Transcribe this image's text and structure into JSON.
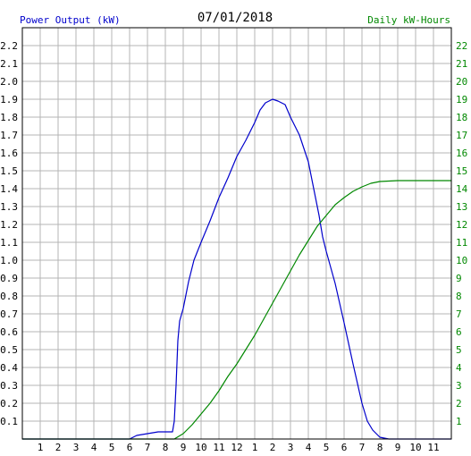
{
  "chart_data": {
    "type": "line",
    "title": "07/01/2018",
    "left_axis_label": "Power Output (kW)",
    "right_axis_label": "Daily kW-Hours",
    "x_ticks": [
      "1",
      "2",
      "3",
      "4",
      "5",
      "6",
      "7",
      "8",
      "9",
      "10",
      "11",
      "12",
      "1",
      "2",
      "3",
      "4",
      "5",
      "6",
      "7",
      "8",
      "9",
      "10",
      "11"
    ],
    "x_range_hours": [
      0,
      24
    ],
    "y_left": {
      "min": 0,
      "max": 2.3,
      "ticks": [
        "0.1",
        "0.2",
        "0.3",
        "0.4",
        "0.5",
        "0.6",
        "0.7",
        "0.8",
        "0.9",
        "1.0",
        "1.1",
        "1.2",
        "1.3",
        "1.4",
        "1.5",
        "1.6",
        "1.7",
        "1.8",
        "1.9",
        "2.0",
        "2.1",
        "2.2"
      ]
    },
    "y_right": {
      "min": 0,
      "max": 23,
      "ticks": [
        "1",
        "2",
        "3",
        "4",
        "5",
        "6",
        "7",
        "8",
        "9",
        "10",
        "11",
        "12",
        "13",
        "14",
        "15",
        "16",
        "17",
        "18",
        "19",
        "20",
        "21",
        "22"
      ]
    },
    "grid": true,
    "series": [
      {
        "axis": "left",
        "color": "#0000cc",
        "points": [
          [
            0,
            0
          ],
          [
            6.0,
            0
          ],
          [
            6.4,
            0.02
          ],
          [
            7.0,
            0.03
          ],
          [
            7.6,
            0.04
          ],
          [
            8.4,
            0.04
          ],
          [
            8.5,
            0.1
          ],
          [
            8.6,
            0.3
          ],
          [
            8.7,
            0.55
          ],
          [
            8.8,
            0.66
          ],
          [
            9.0,
            0.73
          ],
          [
            9.3,
            0.88
          ],
          [
            9.6,
            1.0
          ],
          [
            10.0,
            1.1
          ],
          [
            10.5,
            1.22
          ],
          [
            11.0,
            1.35
          ],
          [
            11.5,
            1.46
          ],
          [
            12.0,
            1.58
          ],
          [
            12.5,
            1.67
          ],
          [
            13.0,
            1.77
          ],
          [
            13.3,
            1.84
          ],
          [
            13.6,
            1.88
          ],
          [
            14.0,
            1.9
          ],
          [
            14.3,
            1.89
          ],
          [
            14.7,
            1.87
          ],
          [
            15.0,
            1.8
          ],
          [
            15.5,
            1.7
          ],
          [
            16.0,
            1.55
          ],
          [
            16.3,
            1.4
          ],
          [
            16.6,
            1.25
          ],
          [
            16.8,
            1.13
          ],
          [
            17.0,
            1.05
          ],
          [
            17.5,
            0.87
          ],
          [
            18.0,
            0.65
          ],
          [
            18.5,
            0.42
          ],
          [
            19.0,
            0.2
          ],
          [
            19.3,
            0.1
          ],
          [
            19.6,
            0.05
          ],
          [
            20.0,
            0.01
          ],
          [
            20.5,
            0
          ],
          [
            24,
            0
          ]
        ]
      },
      {
        "axis": "right",
        "color": "#008800",
        "points": [
          [
            0,
            0
          ],
          [
            8.5,
            0
          ],
          [
            9.0,
            0.3
          ],
          [
            9.5,
            0.8
          ],
          [
            10.0,
            1.4
          ],
          [
            10.5,
            2.0
          ],
          [
            11.0,
            2.7
          ],
          [
            11.5,
            3.5
          ],
          [
            12.0,
            4.2
          ],
          [
            12.5,
            5.0
          ],
          [
            13.0,
            5.8
          ],
          [
            13.5,
            6.7
          ],
          [
            14.0,
            7.6
          ],
          [
            14.5,
            8.5
          ],
          [
            15.0,
            9.4
          ],
          [
            15.5,
            10.3
          ],
          [
            16.0,
            11.1
          ],
          [
            16.5,
            11.9
          ],
          [
            17.0,
            12.5
          ],
          [
            17.5,
            13.1
          ],
          [
            18.0,
            13.5
          ],
          [
            18.5,
            13.85
          ],
          [
            19.0,
            14.1
          ],
          [
            19.5,
            14.3
          ],
          [
            20.0,
            14.4
          ],
          [
            21.0,
            14.45
          ],
          [
            24,
            14.45
          ]
        ]
      }
    ]
  }
}
